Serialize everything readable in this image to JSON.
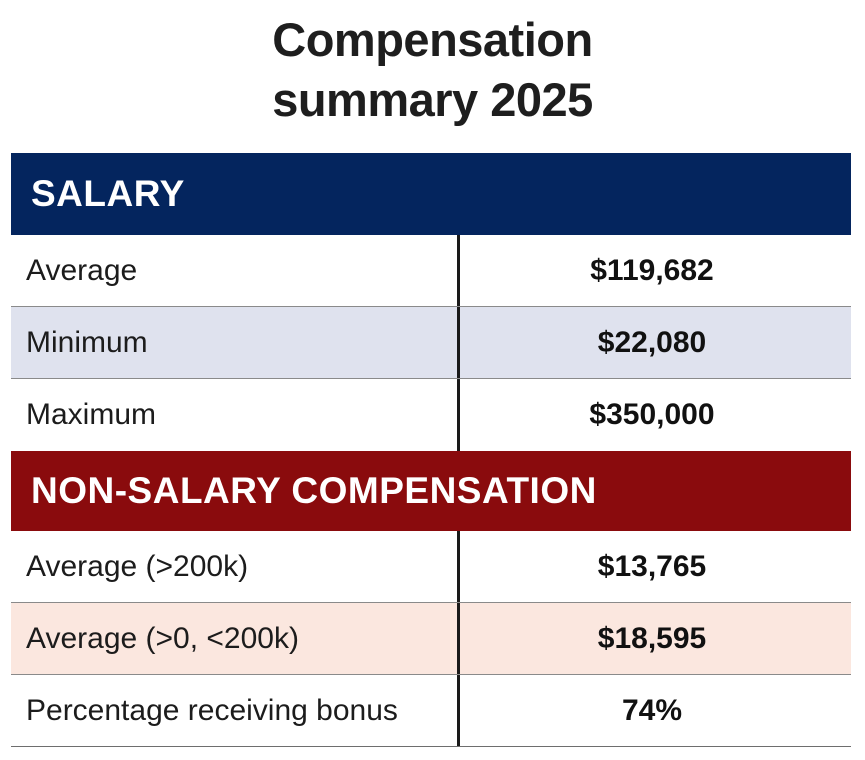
{
  "title": {
    "line1": "Compensation",
    "line2": "summary 2025"
  },
  "sections": [
    {
      "header": "SALARY",
      "header_color": "#04255e",
      "row_shade_color": "#dfe2ee",
      "rows": [
        {
          "label": "Average",
          "value": "$119,682"
        },
        {
          "label": "Minimum",
          "value": "$22,080"
        },
        {
          "label": "Maximum",
          "value": "$350,000"
        }
      ]
    },
    {
      "header": "NON-SALARY COMPENSATION",
      "header_color": "#8a0b0d",
      "row_shade_color": "#fbe7df",
      "rows": [
        {
          "label": "Average (>200k)",
          "value": "$13,765"
        },
        {
          "label": "Average (>0, <200k)",
          "value": "$18,595"
        },
        {
          "label": "Percentage receiving bonus",
          "value": "74%"
        }
      ]
    }
  ]
}
